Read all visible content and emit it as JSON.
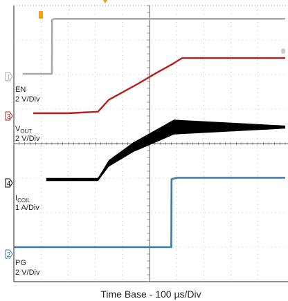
{
  "chart_data": {
    "type": "line",
    "title": "",
    "xlabel": "Time Base - 100 µs/Div",
    "x_unit": "µs",
    "xlim": [
      0,
      1000
    ],
    "x_divisions": 10,
    "y_divisions": 8,
    "grid": true,
    "series": [
      {
        "marker": "1",
        "name": "EN",
        "name_sub": "",
        "scale": "2 V/Div",
        "color": "#a8a8a8",
        "points": [
          [
            0,
            0
          ],
          [
            140,
            0
          ],
          [
            141,
            5.9
          ],
          [
            150,
            6.0
          ],
          [
            1000,
            6.0
          ]
        ]
      },
      {
        "marker": "3",
        "name": "V",
        "name_sub": "OUT",
        "scale": "2 V/Div",
        "color": "#b81c1c",
        "points": [
          [
            0,
            0
          ],
          [
            200,
            0
          ],
          [
            310,
            0.1
          ],
          [
            350,
            0.9
          ],
          [
            450,
            1.9
          ],
          [
            525,
            2.7
          ],
          [
            585,
            3.3
          ],
          [
            620,
            3.7
          ],
          [
            1000,
            3.7
          ]
        ]
      },
      {
        "marker": "4",
        "name": "I",
        "name_sub": "COIL",
        "scale": "1 A/Div",
        "color": "#000000",
        "points": [
          [
            0,
            0
          ],
          [
            310,
            0
          ],
          [
            350,
            0.8
          ],
          [
            440,
            1.6
          ],
          [
            530,
            2.2
          ],
          [
            590,
            2.6
          ],
          [
            1000,
            2.6
          ]
        ]
      },
      {
        "marker": "2",
        "name": "PG",
        "name_sub": "",
        "scale": "2 V/Div",
        "color": "#3a7ca5",
        "points": [
          [
            0,
            0
          ],
          [
            580,
            0
          ],
          [
            581,
            5.0
          ],
          [
            600,
            5.1
          ],
          [
            1000,
            5.1
          ]
        ]
      }
    ]
  }
}
